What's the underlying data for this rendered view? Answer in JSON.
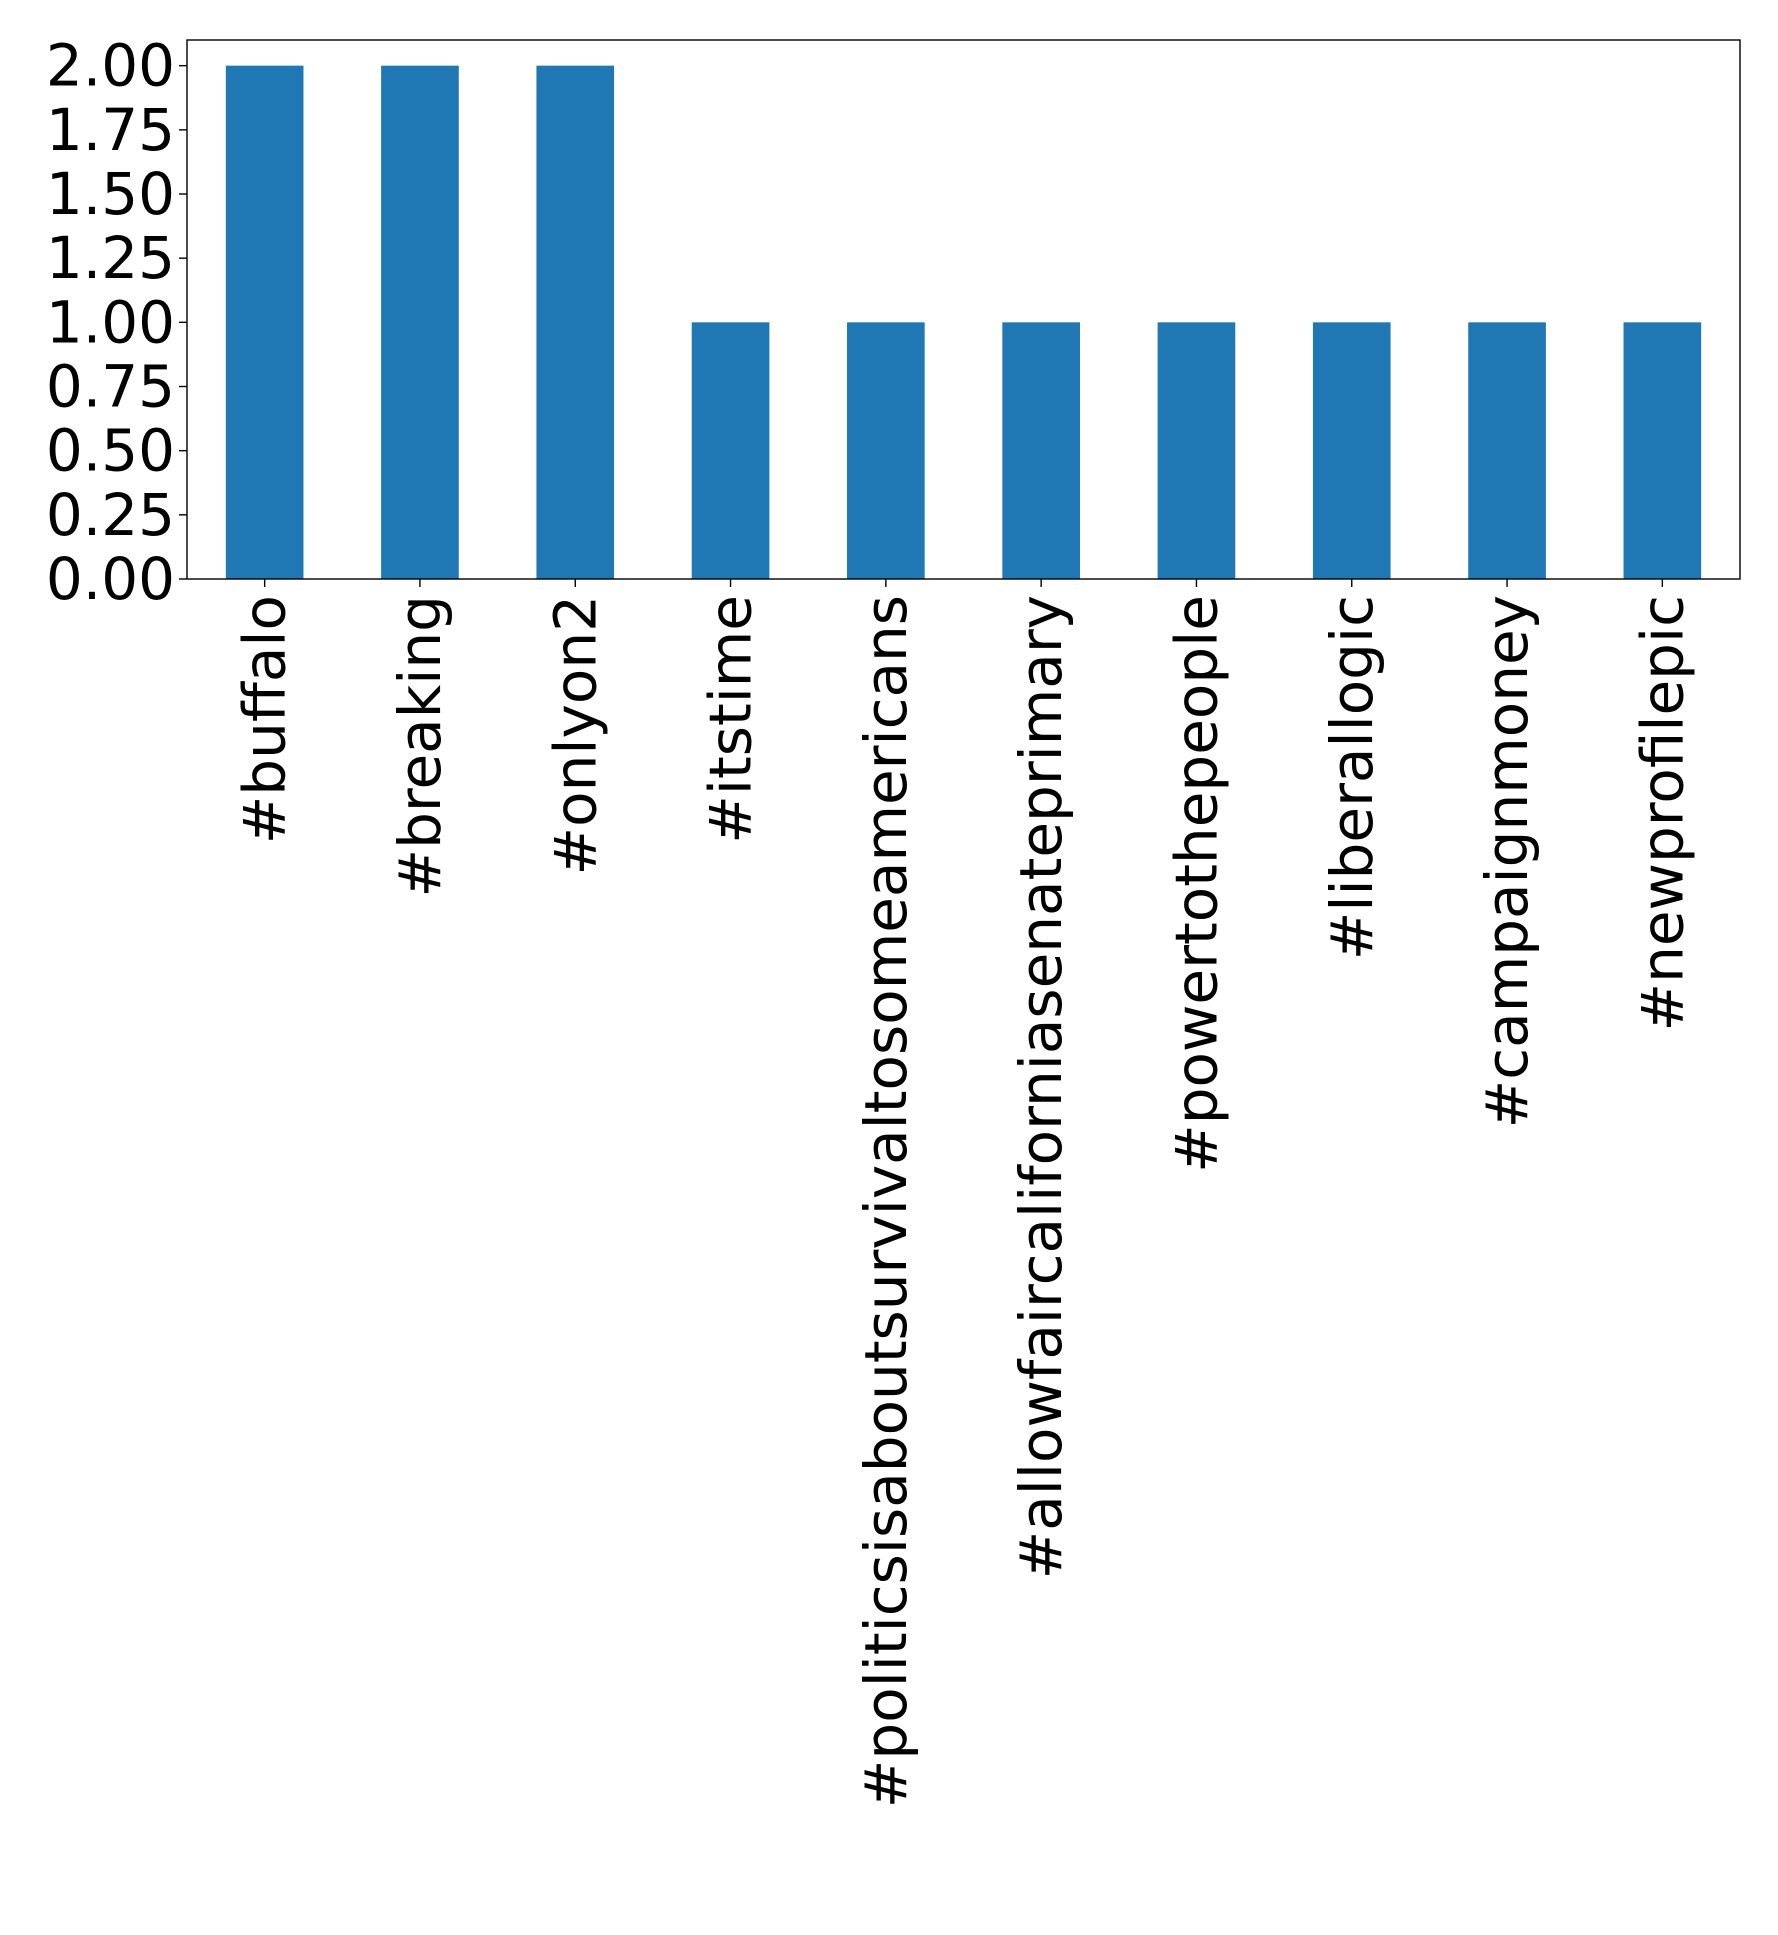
{
  "chart_data": {
    "type": "bar",
    "title": "",
    "xlabel": "",
    "ylabel": "",
    "categories": [
      "#buffalo",
      "#breaking",
      "#onlyon2",
      "#itstime",
      "#politicsisaboutsurvivaltosomeamericans",
      "#allowfaircaliforniasenateprimary",
      "#powertothepeople",
      "#liberallogic",
      "#campaignmoney",
      "#newprofilepic"
    ],
    "values": [
      2,
      2,
      2,
      1,
      1,
      1,
      1,
      1,
      1,
      1
    ],
    "ylim": [
      0,
      2.1
    ],
    "yticks": [
      "0.00",
      "0.25",
      "0.50",
      "0.75",
      "1.00",
      "1.25",
      "1.50",
      "1.75",
      "2.00"
    ],
    "grid": false,
    "legend": "none",
    "bar_color": "#1f77b4"
  }
}
